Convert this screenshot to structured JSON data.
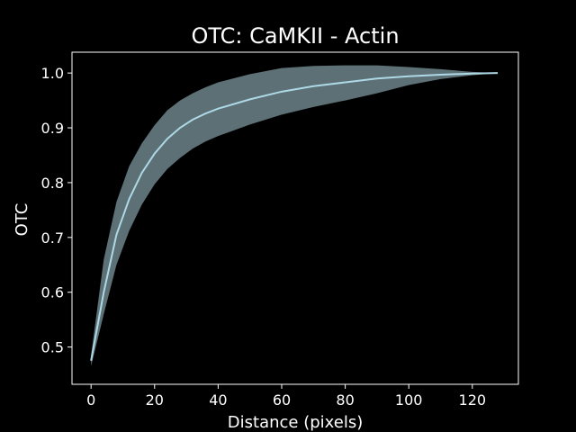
{
  "chart_data": {
    "type": "line",
    "title": "OTC: CaMKII - Actin",
    "xlabel": "Distance (pixels)",
    "ylabel": "OTC",
    "xlim": [
      -6,
      134.5
    ],
    "ylim": [
      0.432,
      1.038
    ],
    "xticks": [
      0,
      20,
      40,
      60,
      80,
      100,
      120
    ],
    "yticks": [
      0.5,
      0.6,
      0.7,
      0.8,
      0.9,
      1.0
    ],
    "xtick_labels": [
      "0",
      "20",
      "40",
      "60",
      "80",
      "100",
      "120"
    ],
    "ytick_labels": [
      "0.5",
      "0.6",
      "0.7",
      "0.8",
      "0.9",
      "1.0"
    ],
    "grid": false,
    "colors": {
      "background": "#000000",
      "axes": "#ffffff",
      "line": "#add8e6",
      "band": "#b8e0ea"
    },
    "series": [
      {
        "x": [
          0,
          4,
          8,
          12,
          16,
          20,
          24,
          28,
          32,
          36,
          40,
          50,
          60,
          70,
          80,
          90,
          100,
          110,
          120,
          128
        ],
        "values": [
          0.475,
          0.6,
          0.705,
          0.77,
          0.818,
          0.853,
          0.88,
          0.9,
          0.915,
          0.926,
          0.935,
          0.952,
          0.966,
          0.976,
          0.983,
          0.99,
          0.994,
          0.997,
          0.999,
          1.0
        ],
        "lower": [
          0.465,
          0.56,
          0.65,
          0.712,
          0.76,
          0.797,
          0.825,
          0.845,
          0.862,
          0.875,
          0.885,
          0.906,
          0.924,
          0.938,
          0.95,
          0.963,
          0.978,
          0.989,
          0.996,
          1.0
        ],
        "upper": [
          0.485,
          0.66,
          0.765,
          0.83,
          0.872,
          0.905,
          0.932,
          0.95,
          0.963,
          0.974,
          0.983,
          0.998,
          1.009,
          1.013,
          1.014,
          1.014,
          1.011,
          1.007,
          1.002,
          1.0
        ]
      }
    ]
  }
}
